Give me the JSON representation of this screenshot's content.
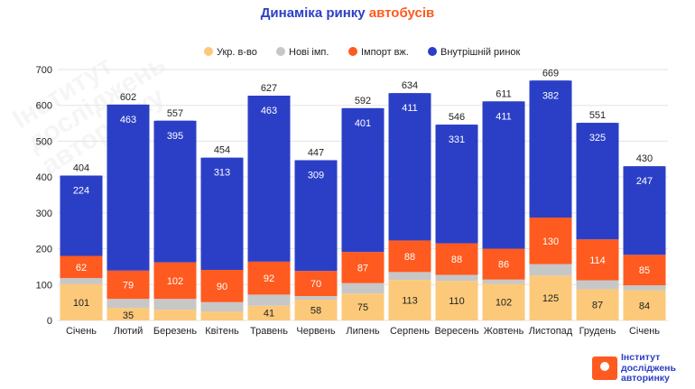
{
  "title": {
    "part1": "Динаміка ринку",
    "part2": "автобусів"
  },
  "watermark": {
    "line1": "Інститут",
    "line2": "досліджень",
    "line3": "авторинку"
  },
  "colors": {
    "ukr": "#fcc97a",
    "new_imp": "#c7c7c7",
    "import_used": "#ff5a1f",
    "domestic": "#2b3fc6",
    "title_blue": "#2b3fc6",
    "title_orange": "#ff5a1f"
  },
  "chart_data": {
    "type": "bar",
    "stacked": true,
    "categories": [
      "Січень",
      "Лютий",
      "Березень",
      "Квітень",
      "Травень",
      "Червень",
      "Липень",
      "Серпень",
      "Вересень",
      "Жовтень",
      "Листопад",
      "Грудень",
      "Січень"
    ],
    "series": [
      {
        "name": "Укр. в-во",
        "values": [
          101,
          35,
          30,
          25,
          41,
          58,
          75,
          113,
          110,
          102,
          125,
          87,
          84
        ]
      },
      {
        "name": "Нові імп.",
        "values": [
          17,
          25,
          30,
          26,
          31,
          10,
          29,
          22,
          17,
          12,
          32,
          25,
          14
        ]
      },
      {
        "name": "Імпорт вж.",
        "values": [
          62,
          79,
          102,
          90,
          92,
          70,
          87,
          88,
          88,
          86,
          130,
          114,
          85
        ]
      },
      {
        "name": "Внутрішній ринок",
        "values": [
          224,
          463,
          395,
          313,
          463,
          309,
          401,
          411,
          331,
          411,
          382,
          325,
          247
        ]
      }
    ],
    "totals": [
      404,
      602,
      557,
      454,
      627,
      447,
      592,
      634,
      546,
      611,
      669,
      551,
      430
    ],
    "value_labels": {
      "Укр. в-во": [
        101,
        35,
        "",
        "",
        41,
        58,
        75,
        113,
        110,
        102,
        125,
        87,
        84
      ],
      "Імпорт вж.": [
        62,
        79,
        102,
        90,
        92,
        70,
        87,
        88,
        88,
        86,
        130,
        114,
        85
      ],
      "Внутрішній ринок": [
        224,
        463,
        395,
        313,
        463,
        309,
        401,
        411,
        331,
        411,
        382,
        325,
        247
      ]
    },
    "ylim": [
      0,
      700
    ],
    "yticks": [
      0,
      100,
      200,
      300,
      400,
      500,
      600,
      700
    ],
    "grid": true,
    "legend_position": "top"
  },
  "logo": {
    "line1": "Інститут",
    "line2": "досліджень",
    "line3": "авторинку"
  }
}
